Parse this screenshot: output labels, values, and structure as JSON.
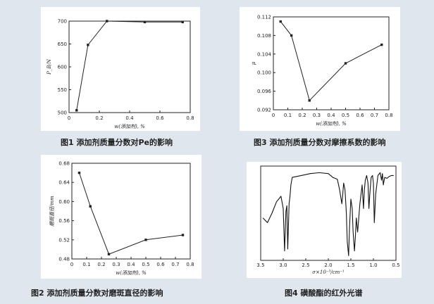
{
  "chart_data": [
    {
      "type": "line",
      "id": "fig1",
      "x": [
        0.05,
        0.125,
        0.25,
        0.5,
        0.75
      ],
      "y": [
        505,
        648,
        700,
        698,
        698
      ],
      "xlabel": "w(添加剂), %",
      "ylabel": "P_B/N",
      "xlim": [
        0,
        0.8
      ],
      "ylim": [
        500,
        700
      ],
      "xticks": [
        "0",
        "0.2",
        "0.4",
        "0.6",
        "0.8"
      ],
      "yticks": [
        "500",
        "550",
        "600",
        "650",
        "700"
      ],
      "caption": "图1  添加剂质量分数对Pe的影响"
    },
    {
      "type": "line",
      "id": "fig3",
      "x": [
        0.05,
        0.125,
        0.25,
        0.5,
        0.75
      ],
      "y": [
        0.111,
        0.108,
        0.094,
        0.102,
        0.106
      ],
      "xlabel": "w(添加剂), %",
      "ylabel": "μ",
      "xlim": [
        0,
        0.8
      ],
      "ylim": [
        0.092,
        0.112
      ],
      "xticks": [
        "0",
        "0.1",
        "0.2",
        "0.3",
        "0.4",
        "0.5",
        "0.6",
        "0.7",
        "0.8"
      ],
      "yticks": [
        "0.092",
        "0.096",
        "0.100",
        "0.104",
        "0.108",
        "0.112"
      ],
      "caption": "图3  添加剂质量分数对摩擦系数的影响"
    },
    {
      "type": "line",
      "id": "fig2",
      "x": [
        0.05,
        0.125,
        0.25,
        0.5,
        0.75
      ],
      "y": [
        0.66,
        0.59,
        0.49,
        0.52,
        0.53
      ],
      "xlabel": "w(添加剂), %",
      "ylabel": "磨斑直径/mm",
      "xlim": [
        0,
        0.8
      ],
      "ylim": [
        0.48,
        0.68
      ],
      "xticks": [
        "0",
        "0.1",
        "0.2",
        "0.3",
        "0.4",
        "0.5",
        "0.6",
        "0.7",
        "0.8"
      ],
      "yticks": [
        "0.48",
        "0.52",
        "0.56",
        "0.60",
        "0.64",
        "0.68"
      ],
      "caption": "图2  添加剂质量分数对磨斑直径的影响"
    },
    {
      "type": "line",
      "id": "fig4",
      "x": [
        3.45,
        3.35,
        3.25,
        3.15,
        3.05,
        3.0,
        2.97,
        2.94,
        2.92,
        2.9,
        2.87,
        2.85,
        2.83,
        2.8,
        2.6,
        2.4,
        2.2,
        2.0,
        1.9,
        1.8,
        1.75,
        1.7,
        1.68,
        1.66,
        1.63,
        1.6,
        1.58,
        1.55,
        1.53,
        1.5,
        1.47,
        1.45,
        1.42,
        1.4,
        1.38,
        1.35,
        1.3,
        1.25,
        1.22,
        1.2,
        1.18,
        1.15,
        1.12,
        1.1,
        1.08,
        1.05,
        1.02,
        1.0,
        0.98,
        0.95,
        0.9,
        0.85,
        0.82,
        0.8,
        0.78,
        0.75,
        0.7,
        0.65,
        0.6,
        0.55
      ],
      "y": [
        0.45,
        0.4,
        0.5,
        0.62,
        0.68,
        0.55,
        0.1,
        0.52,
        0.58,
        0.12,
        0.6,
        0.68,
        0.8,
        0.88,
        0.9,
        0.92,
        0.93,
        0.92,
        0.88,
        0.86,
        0.75,
        0.6,
        0.7,
        0.82,
        0.75,
        0.5,
        0.2,
        0.05,
        0.35,
        0.65,
        0.55,
        0.3,
        0.1,
        0.25,
        0.45,
        0.3,
        0.6,
        0.8,
        0.55,
        0.75,
        0.85,
        0.9,
        0.82,
        0.55,
        0.7,
        0.88,
        0.9,
        0.82,
        0.4,
        0.7,
        0.9,
        0.93,
        0.85,
        0.92,
        0.8,
        0.88,
        0.87,
        0.89,
        0.9,
        0.9
      ],
      "xlabel": "σ×10⁻³/cm⁻¹",
      "xlim": [
        3.5,
        0.5
      ],
      "xticks": [
        "3.5",
        "3.0",
        "2.5",
        "2.0",
        "1.5",
        "1.0",
        "0.5"
      ],
      "caption": "图4  磺酸酯的红外光谱"
    }
  ]
}
